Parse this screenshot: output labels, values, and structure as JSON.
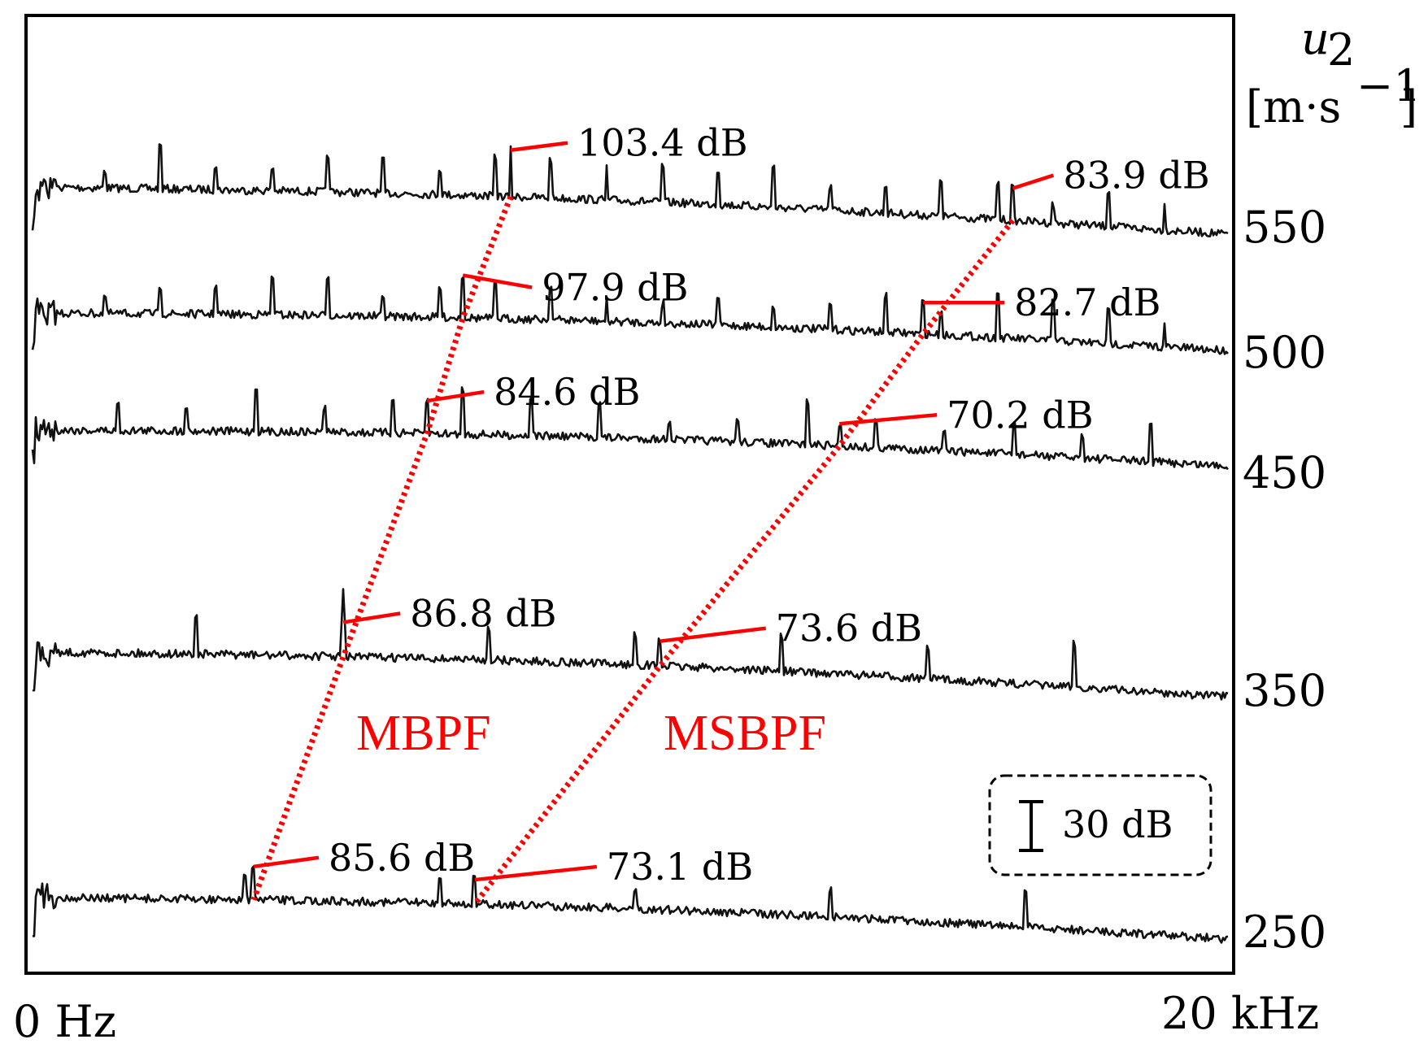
{
  "chart_data": {
    "type": "line",
    "title": "",
    "xlabel": "",
    "xlim": [
      0,
      20000
    ],
    "x_tick_labels": {
      "start": "0 Hz",
      "end": "20 kHz"
    },
    "ylabel": {
      "symbol": "u",
      "subscript": "2",
      "unit": "[m·s",
      "unit_exp": "−1",
      "unit_close": "]"
    },
    "series_offset_order": "waterfall",
    "series": [
      {
        "speed": "550",
        "value": 550,
        "peaks": [
          {
            "mode": "MBPF",
            "freq_hz": 8000,
            "level": "103.4 dB"
          },
          {
            "mode": "MSBPF",
            "freq_hz": 16400,
            "level": "83.9 dB"
          }
        ]
      },
      {
        "speed": "500",
        "value": 500,
        "peaks": [
          {
            "mode": "MBPF",
            "freq_hz": 7200,
            "level": "97.9 dB"
          },
          {
            "mode": "MSBPF",
            "freq_hz": 14900,
            "level": "82.7 dB"
          }
        ]
      },
      {
        "speed": "450",
        "value": 450,
        "peaks": [
          {
            "mode": "MBPF",
            "freq_hz": 6600,
            "level": "84.6 dB"
          },
          {
            "mode": "MSBPF",
            "freq_hz": 13500,
            "level": "70.2 dB"
          }
        ]
      },
      {
        "speed": "350",
        "value": 350,
        "peaks": [
          {
            "mode": "MBPF",
            "freq_hz": 5200,
            "level": "86.8 dB"
          },
          {
            "mode": "MSBPF",
            "freq_hz": 10500,
            "level": "73.6 dB"
          }
        ]
      },
      {
        "speed": "250",
        "value": 250,
        "peaks": [
          {
            "mode": "MBPF",
            "freq_hz": 3700,
            "level": "85.6 dB"
          },
          {
            "mode": "MSBPF",
            "freq_hz": 7400,
            "level": "73.1 dB"
          }
        ]
      }
    ],
    "mode_labels": [
      "MBPF",
      "MSBPF"
    ],
    "scale_bar": {
      "label": "30 dB",
      "value_db": 30
    },
    "legend": "bottom-right",
    "grid": false,
    "colors": {
      "trace": "#111111",
      "annotation": "#ff0000"
    }
  }
}
